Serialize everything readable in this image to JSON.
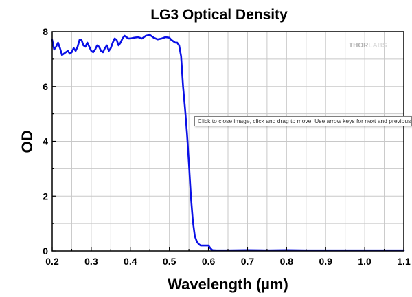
{
  "chart_data": {
    "type": "line",
    "title": "LG3 Optical Density",
    "xlabel": "Wavelength (µm)",
    "ylabel": "OD",
    "xlim": [
      0.2,
      1.1
    ],
    "ylim": [
      0,
      8
    ],
    "xticks": [
      "0.2",
      "0.3",
      "0.4",
      "0.5",
      "0.6",
      "0.7",
      "0.8",
      "0.9",
      "1.0",
      "1.1"
    ],
    "yticks": [
      "0",
      "2",
      "4",
      "6",
      "8"
    ],
    "grid": true,
    "series": [
      {
        "name": "LG3",
        "color": "#0a10e6",
        "x": [
          0.2,
          0.205,
          0.21,
          0.215,
          0.22,
          0.225,
          0.23,
          0.235,
          0.24,
          0.245,
          0.25,
          0.255,
          0.26,
          0.265,
          0.27,
          0.275,
          0.28,
          0.285,
          0.29,
          0.295,
          0.3,
          0.305,
          0.31,
          0.315,
          0.32,
          0.325,
          0.33,
          0.335,
          0.34,
          0.345,
          0.35,
          0.355,
          0.36,
          0.365,
          0.37,
          0.375,
          0.38,
          0.385,
          0.39,
          0.395,
          0.4,
          0.41,
          0.42,
          0.43,
          0.44,
          0.45,
          0.46,
          0.47,
          0.48,
          0.49,
          0.5,
          0.505,
          0.51,
          0.515,
          0.52,
          0.525,
          0.53,
          0.535,
          0.54,
          0.545,
          0.55,
          0.555,
          0.56,
          0.565,
          0.57,
          0.575,
          0.58,
          0.59,
          0.6,
          0.605,
          0.61,
          0.62,
          0.65,
          0.7,
          0.75,
          0.8,
          0.85,
          0.9,
          0.95,
          1.0,
          1.05,
          1.1
        ],
        "y": [
          7.7,
          7.35,
          7.45,
          7.6,
          7.4,
          7.15,
          7.2,
          7.25,
          7.3,
          7.2,
          7.25,
          7.4,
          7.3,
          7.45,
          7.7,
          7.7,
          7.5,
          7.45,
          7.6,
          7.45,
          7.3,
          7.25,
          7.35,
          7.5,
          7.45,
          7.3,
          7.25,
          7.4,
          7.5,
          7.3,
          7.4,
          7.6,
          7.75,
          7.7,
          7.5,
          7.6,
          7.75,
          7.85,
          7.8,
          7.75,
          7.75,
          7.78,
          7.8,
          7.75,
          7.85,
          7.88,
          7.78,
          7.72,
          7.75,
          7.8,
          7.78,
          7.7,
          7.65,
          7.6,
          7.6,
          7.5,
          7.1,
          6.0,
          5.2,
          4.3,
          3.2,
          2.0,
          1.1,
          0.55,
          0.35,
          0.25,
          0.2,
          0.2,
          0.2,
          0.1,
          0.03,
          0.02,
          0.02,
          0.03,
          0.02,
          0.03,
          0.02,
          0.02,
          0.02,
          0.02,
          0.02,
          0.02
        ]
      }
    ]
  },
  "watermark": {
    "part1": "THOR",
    "part2": "LABS"
  },
  "tooltip": {
    "text": "Click to close image, click and drag to move. Use arrow keys for next and previous."
  }
}
